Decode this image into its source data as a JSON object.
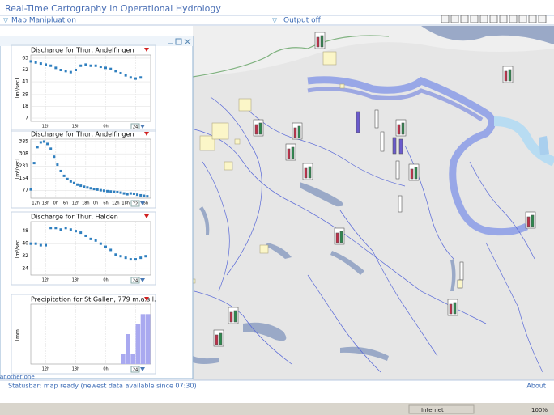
{
  "header": {
    "title": "Real-Time Cartography in Operational Hydrology"
  },
  "toolbar": {
    "map_menu": "Map Manipluation",
    "output_menu": "Output off"
  },
  "panel": {
    "footer": "another one",
    "charts": [
      {
        "type": "line",
        "title": "Discharge for Thur, Andelfingen",
        "ylabel": "[m³/sec]",
        "range_label": "24",
        "color": "#2f7fbf",
        "x": [
          0,
          1,
          2,
          3,
          4,
          5,
          6,
          7,
          8,
          9,
          10,
          11,
          12,
          13,
          14,
          15,
          16,
          17,
          18,
          19,
          20,
          21,
          22
        ],
        "values": [
          60,
          59,
          58,
          57,
          56,
          54,
          52,
          51,
          50,
          52,
          56,
          57,
          56,
          56,
          55,
          54,
          53,
          51,
          49,
          47,
          45,
          44,
          45
        ],
        "xlim": [
          0,
          24
        ],
        "ylim": [
          4,
          66
        ],
        "yticks": [
          63,
          52,
          41,
          29,
          18,
          7
        ],
        "xticks": [
          {
            "value": 3,
            "label": "12h"
          },
          {
            "value": 9,
            "label": "18h"
          },
          {
            "value": 15,
            "label": "0h"
          },
          {
            "value": 21,
            "label": "6h"
          }
        ]
      },
      {
        "type": "line",
        "title": "Discharge for Thur, Andelfingen",
        "ylabel": "[m³/sec]",
        "range_label": "72",
        "color": "#2f7fbf",
        "x": [
          0,
          2,
          4,
          6,
          8,
          10,
          12,
          14,
          16,
          18,
          20,
          22,
          24,
          26,
          28,
          30,
          32,
          34,
          36,
          38,
          40,
          42,
          44,
          46,
          48,
          50,
          52,
          54,
          56,
          58,
          60,
          62,
          64,
          66,
          68,
          70
        ],
        "values": [
          85,
          250,
          350,
          380,
          385,
          370,
          340,
          290,
          240,
          200,
          170,
          150,
          135,
          125,
          115,
          108,
          102,
          97,
          92,
          88,
          84,
          80,
          77,
          74,
          72,
          70,
          68,
          65,
          60,
          55,
          60,
          58,
          52,
          48,
          45,
          42
        ],
        "xlim": [
          0,
          72
        ],
        "ylim": [
          30,
          400
        ],
        "yticks": [
          385,
          308,
          231,
          154,
          77
        ],
        "xticks": [
          {
            "value": 3,
            "label": "12h"
          },
          {
            "value": 9,
            "label": "18h"
          },
          {
            "value": 15,
            "label": "0h"
          },
          {
            "value": 21,
            "label": "6h"
          },
          {
            "value": 27,
            "label": "12h"
          },
          {
            "value": 33,
            "label": "18h"
          },
          {
            "value": 39,
            "label": "0h"
          },
          {
            "value": 45,
            "label": "6h"
          },
          {
            "value": 51,
            "label": "12h"
          },
          {
            "value": 57,
            "label": "18h"
          },
          {
            "value": 63,
            "label": "0h"
          },
          {
            "value": 69,
            "label": "6h"
          }
        ]
      },
      {
        "type": "line",
        "title": "Discharge for Thur, Halden",
        "ylabel": "[m³/sec]",
        "range_label": "24",
        "color": "#2f7fbf",
        "x": [
          0,
          1,
          2,
          3,
          4,
          5,
          6,
          7,
          8,
          9,
          10,
          11,
          12,
          13,
          14,
          15,
          16,
          17,
          18,
          19,
          20,
          21,
          22,
          23
        ],
        "values": [
          40,
          40,
          39,
          39,
          50,
          50,
          49,
          50,
          49,
          48,
          47,
          45,
          43,
          42,
          40,
          38,
          36,
          33,
          32,
          31,
          30,
          30,
          31,
          32
        ],
        "xlim": [
          0,
          24
        ],
        "ylim": [
          20,
          54
        ],
        "yticks": [
          48,
          40,
          32,
          24
        ],
        "xticks": [
          {
            "value": 3,
            "label": "12h"
          },
          {
            "value": 9,
            "label": "18h"
          },
          {
            "value": 15,
            "label": "0h"
          },
          {
            "value": 21,
            "label": "6h"
          }
        ]
      },
      {
        "type": "bar",
        "title": "Precipitation for St.Gallen, 779 m.a.s.l.",
        "ylabel": "[mm]",
        "range_label": "24",
        "color": "#a9a9f0",
        "x": [
          0,
          1,
          2,
          3,
          4,
          5,
          6,
          7,
          8,
          9,
          10,
          11,
          12,
          13,
          14,
          15,
          16,
          17,
          18,
          19,
          20,
          21,
          22,
          23
        ],
        "values": [
          0,
          0,
          0,
          0,
          0,
          0,
          0,
          0,
          0,
          0,
          0,
          0,
          0,
          0,
          0,
          0,
          0,
          0,
          1,
          3,
          1,
          4,
          5,
          5
        ],
        "xlim": [
          0,
          24
        ],
        "ylim": [
          0,
          6
        ],
        "xticks": [
          {
            "value": 3,
            "label": "12h"
          },
          {
            "value": 9,
            "label": "18h"
          },
          {
            "value": 15,
            "label": "0h"
          },
          {
            "value": 21,
            "label": "6h"
          }
        ]
      }
    ]
  },
  "statusbar": {
    "text": "Statusbar: map ready (newest data available since 07:30)",
    "about": "About"
  },
  "browser_status": {
    "zone": "Internet",
    "zoom": "100%"
  }
}
